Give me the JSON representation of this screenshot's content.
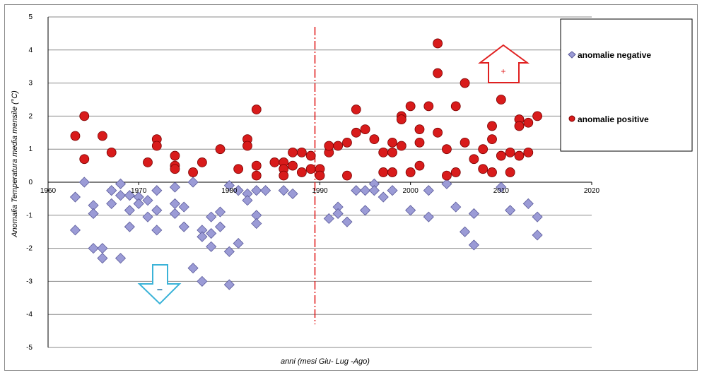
{
  "chart_data": {
    "type": "scatter",
    "xlabel": "anni (mesi Giu- Lug -Ago)",
    "ylabel": "Anomalia Temperatura media mensile (°C)",
    "xlim": [
      1960,
      2020
    ],
    "ylim": [
      -5,
      5
    ],
    "x_ticks": [
      "1960",
      "1970",
      "1980",
      "1990",
      "2000",
      "2010",
      "2020"
    ],
    "y_ticks": [
      "5",
      "4",
      "3",
      "2",
      "1",
      "0",
      "-1",
      "-2",
      "-3",
      "-4",
      "-5"
    ],
    "grid": "horizontal",
    "legend_position": "right",
    "reference_line_x": 1990,
    "annotations": {
      "plus": "+",
      "minus": "−"
    },
    "colors": {
      "negative": "#9b9bd6",
      "negative_edge": "#5a5a9a",
      "positive": "#d81b1b",
      "positive_edge": "#7a0000",
      "divider": "#e01010",
      "up_arrow": "#e02020",
      "down_arrow": "#3bb3d8"
    },
    "series": [
      {
        "name": "anomalie negative",
        "marker": "diamond",
        "points": [
          [
            1963,
            -0.45
          ],
          [
            1963,
            -1.45
          ],
          [
            1964,
            0
          ],
          [
            1965,
            -0.7
          ],
          [
            1965,
            -0.95
          ],
          [
            1965,
            -2
          ],
          [
            1966,
            -2
          ],
          [
            1966,
            -2.3
          ],
          [
            1967,
            -0.25
          ],
          [
            1967,
            -0.65
          ],
          [
            1968,
            -0.4
          ],
          [
            1968,
            -0.05
          ],
          [
            1968,
            -2.3
          ],
          [
            1969,
            -0.4
          ],
          [
            1969,
            -0.85
          ],
          [
            1969,
            -1.35
          ],
          [
            1970,
            -0.45
          ],
          [
            1970,
            -0.65
          ],
          [
            1971,
            -0.55
          ],
          [
            1971,
            -1.05
          ],
          [
            1972,
            -0.25
          ],
          [
            1972,
            -0.85
          ],
          [
            1972,
            -1.45
          ],
          [
            1974,
            -0.15
          ],
          [
            1974,
            -0.65
          ],
          [
            1974,
            -0.95
          ],
          [
            1975,
            -0.75
          ],
          [
            1975,
            -1.35
          ],
          [
            1976,
            0
          ],
          [
            1976,
            -2.6
          ],
          [
            1977,
            -1.45
          ],
          [
            1977,
            -1.65
          ],
          [
            1977,
            -3
          ],
          [
            1978,
            -1.05
          ],
          [
            1978,
            -1.55
          ],
          [
            1978,
            -1.95
          ],
          [
            1979,
            -0.9
          ],
          [
            1979,
            -1.35
          ],
          [
            1980,
            -2.1
          ],
          [
            1980,
            -3.1
          ],
          [
            1980,
            -0.1
          ],
          [
            1981,
            -0.25
          ],
          [
            1981,
            -1.85
          ],
          [
            1982,
            -0.35
          ],
          [
            1982,
            -0.55
          ],
          [
            1983,
            -0.25
          ],
          [
            1983,
            -1
          ],
          [
            1983,
            -1.25
          ],
          [
            1984,
            -0.25
          ],
          [
            1986,
            -0.25
          ],
          [
            1987,
            -0.35
          ],
          [
            1991,
            -1.1
          ],
          [
            1992,
            -0.75
          ],
          [
            1992,
            -0.95
          ],
          [
            1993,
            -1.2
          ],
          [
            1994,
            -0.25
          ],
          [
            1995,
            -0.25
          ],
          [
            1995,
            -0.85
          ],
          [
            1996,
            -0.05
          ],
          [
            1996,
            -0.25
          ],
          [
            1997,
            -0.45
          ],
          [
            1998,
            -0.25
          ],
          [
            2000,
            -0.85
          ],
          [
            2002,
            -0.25
          ],
          [
            2002,
            -1.05
          ],
          [
            2004,
            -0.05
          ],
          [
            2005,
            -0.75
          ],
          [
            2006,
            -1.5
          ],
          [
            2007,
            -1.9
          ],
          [
            2007,
            -0.95
          ],
          [
            2010,
            -0.15
          ],
          [
            2011,
            -0.85
          ],
          [
            2013,
            -0.65
          ],
          [
            2014,
            -1.05
          ],
          [
            2014,
            -1.6
          ]
        ]
      },
      {
        "name": "anomalie positive",
        "marker": "circle",
        "points": [
          [
            1963,
            1.4
          ],
          [
            1964,
            2
          ],
          [
            1964,
            0.7
          ],
          [
            1966,
            1.4
          ],
          [
            1967,
            0.9
          ],
          [
            1971,
            0.6
          ],
          [
            1972,
            1.3
          ],
          [
            1972,
            1.1
          ],
          [
            1974,
            0.8
          ],
          [
            1974,
            0.5
          ],
          [
            1974,
            0.4
          ],
          [
            1976,
            0.3
          ],
          [
            1977,
            0.6
          ],
          [
            1979,
            1
          ],
          [
            1981,
            0.4
          ],
          [
            1982,
            1.3
          ],
          [
            1982,
            1.1
          ],
          [
            1983,
            2.2
          ],
          [
            1983,
            0.5
          ],
          [
            1983,
            0.2
          ],
          [
            1985,
            0.6
          ],
          [
            1986,
            0.6
          ],
          [
            1986,
            0.4
          ],
          [
            1986,
            0.2
          ],
          [
            1987,
            0.9
          ],
          [
            1987,
            0.5
          ],
          [
            1988,
            0.9
          ],
          [
            1988,
            0.3
          ],
          [
            1989,
            0.8
          ],
          [
            1989,
            0.4
          ],
          [
            1990,
            0.4
          ],
          [
            1990,
            0.2
          ],
          [
            1991,
            0.9
          ],
          [
            1991,
            1.1
          ],
          [
            1992,
            1.1
          ],
          [
            1993,
            1.2
          ],
          [
            1993,
            0.2
          ],
          [
            1994,
            2.2
          ],
          [
            1994,
            1.5
          ],
          [
            1995,
            1.6
          ],
          [
            1996,
            1.3
          ],
          [
            1997,
            0.9
          ],
          [
            1997,
            0.3
          ],
          [
            1998,
            1.2
          ],
          [
            1998,
            0.9
          ],
          [
            1998,
            0.3
          ],
          [
            1999,
            2
          ],
          [
            1999,
            1.9
          ],
          [
            1999,
            1.1
          ],
          [
            2000,
            2.3
          ],
          [
            2000,
            0.3
          ],
          [
            2001,
            1.6
          ],
          [
            2001,
            1.2
          ],
          [
            2001,
            0.5
          ],
          [
            2002,
            2.3
          ],
          [
            2003,
            4.2
          ],
          [
            2003,
            3.3
          ],
          [
            2003,
            1.5
          ],
          [
            2004,
            1
          ],
          [
            2004,
            0.2
          ],
          [
            2005,
            2.3
          ],
          [
            2005,
            0.3
          ],
          [
            2006,
            3
          ],
          [
            2006,
            1.2
          ],
          [
            2007,
            0.7
          ],
          [
            2008,
            1
          ],
          [
            2008,
            0.4
          ],
          [
            2009,
            1.7
          ],
          [
            2009,
            1.3
          ],
          [
            2009,
            0.3
          ],
          [
            2010,
            2.5
          ],
          [
            2010,
            0.8
          ],
          [
            2011,
            0.9
          ],
          [
            2011,
            0.3
          ],
          [
            2012,
            1.9
          ],
          [
            2012,
            1.7
          ],
          [
            2012,
            0.8
          ],
          [
            2013,
            1.8
          ],
          [
            2013,
            0.9
          ],
          [
            2014,
            2
          ]
        ]
      }
    ]
  }
}
